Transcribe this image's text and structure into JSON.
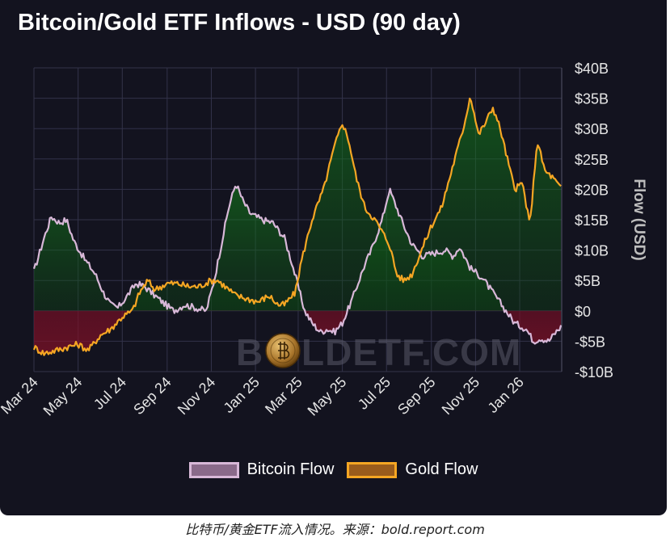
{
  "chart_data": {
    "type": "line",
    "title": "Bitcoin/Gold ETF Inflows - USD (90 day)",
    "ylabel": "Flow (USD)",
    "xlabel": "",
    "ylim": [
      -10,
      40
    ],
    "y_unit": "B USD",
    "yticks": [
      40,
      35,
      30,
      25,
      20,
      15,
      10,
      5,
      0,
      -5,
      -10
    ],
    "ytick_labels": [
      "$40B",
      "$35B",
      "$30B",
      "$25B",
      "$20B",
      "$15B",
      "$10B",
      "$5B",
      "$0",
      "-$5B",
      "-$10B"
    ],
    "xticks": [
      "Mar 24",
      "May 24",
      "Jul 24",
      "Sep 24",
      "Nov 24",
      "Jan 25",
      "Mar 25",
      "May 25",
      "Jul 25",
      "Sep 25",
      "Nov 25",
      "Jan 26"
    ],
    "grid": true,
    "legend_position": "bottom",
    "series": [
      {
        "name": "Bitcoin Flow",
        "color": "#d8b8d8",
        "points": [
          [
            "2024-03-01",
            6.5
          ],
          [
            "2024-03-15",
            12
          ],
          [
            "2024-03-25",
            15.5
          ],
          [
            "2024-04-05",
            14.5
          ],
          [
            "2024-04-15",
            15
          ],
          [
            "2024-04-25",
            11.5
          ],
          [
            "2024-05-10",
            8.5
          ],
          [
            "2024-05-25",
            6
          ],
          [
            "2024-06-05",
            3
          ],
          [
            "2024-06-15",
            1
          ],
          [
            "2024-06-25",
            0.5
          ],
          [
            "2024-07-05",
            2
          ],
          [
            "2024-07-20",
            4.5
          ],
          [
            "2024-08-01",
            4
          ],
          [
            "2024-08-15",
            2.5
          ],
          [
            "2024-08-30",
            1
          ],
          [
            "2024-09-10",
            0
          ],
          [
            "2024-09-25",
            1
          ],
          [
            "2024-10-10",
            0.5
          ],
          [
            "2024-10-25",
            0
          ],
          [
            "2024-11-05",
            5
          ],
          [
            "2024-11-15",
            11
          ],
          [
            "2024-11-25",
            17
          ],
          [
            "2024-12-05",
            21
          ],
          [
            "2024-12-15",
            18
          ],
          [
            "2024-12-25",
            16
          ],
          [
            "2025-01-10",
            15
          ],
          [
            "2025-01-25",
            14.5
          ],
          [
            "2025-02-10",
            12
          ],
          [
            "2025-02-20",
            8
          ],
          [
            "2025-03-01",
            4
          ],
          [
            "2025-03-10",
            0
          ],
          [
            "2025-03-20",
            -2
          ],
          [
            "2025-04-01",
            -3.5
          ],
          [
            "2025-04-10",
            -3
          ],
          [
            "2025-04-20",
            -3.5
          ],
          [
            "2025-05-01",
            -2
          ],
          [
            "2025-05-15",
            2
          ],
          [
            "2025-05-30",
            7
          ],
          [
            "2025-06-10",
            10
          ],
          [
            "2025-06-25",
            15
          ],
          [
            "2025-07-05",
            20
          ],
          [
            "2025-07-15",
            17
          ],
          [
            "2025-07-25",
            14
          ],
          [
            "2025-08-05",
            11
          ],
          [
            "2025-08-20",
            9
          ],
          [
            "2025-09-05",
            9.5
          ],
          [
            "2025-09-20",
            10
          ],
          [
            "2025-10-01",
            9
          ],
          [
            "2025-10-10",
            10.5
          ],
          [
            "2025-10-25",
            7
          ],
          [
            "2025-11-10",
            5.5
          ],
          [
            "2025-11-25",
            3
          ],
          [
            "2025-12-10",
            0.5
          ],
          [
            "2025-12-25",
            -2
          ],
          [
            "2026-01-10",
            -3
          ],
          [
            "2026-01-20",
            -5
          ],
          [
            "2026-01-30",
            -4.5
          ],
          [
            "2026-02-10",
            -5
          ],
          [
            "2026-02-20",
            -3.5
          ],
          [
            "2026-02-28",
            -2.5
          ]
        ]
      },
      {
        "name": "Gold Flow",
        "color": "#f5a623",
        "points": [
          [
            "2024-03-01",
            -6
          ],
          [
            "2024-03-15",
            -7
          ],
          [
            "2024-04-01",
            -6.5
          ],
          [
            "2024-04-15",
            -6
          ],
          [
            "2024-05-01",
            -5.5
          ],
          [
            "2024-05-15",
            -6.5
          ],
          [
            "2024-06-01",
            -4
          ],
          [
            "2024-06-15",
            -3
          ],
          [
            "2024-07-01",
            -1
          ],
          [
            "2024-07-15",
            0
          ],
          [
            "2024-07-25",
            3
          ],
          [
            "2024-08-05",
            5
          ],
          [
            "2024-08-15",
            3.5
          ],
          [
            "2024-09-01",
            4.5
          ],
          [
            "2024-09-15",
            4.5
          ],
          [
            "2024-10-01",
            4
          ],
          [
            "2024-10-15",
            4
          ],
          [
            "2024-11-01",
            5
          ],
          [
            "2024-11-10",
            5
          ],
          [
            "2024-11-20",
            4
          ],
          [
            "2024-12-05",
            2.5
          ],
          [
            "2024-12-20",
            2
          ],
          [
            "2025-01-05",
            1.5
          ],
          [
            "2025-01-20",
            2.5
          ],
          [
            "2025-02-01",
            1
          ],
          [
            "2025-02-10",
            1
          ],
          [
            "2025-02-25",
            3
          ],
          [
            "2025-03-05",
            8
          ],
          [
            "2025-03-20",
            15
          ],
          [
            "2025-04-05",
            20
          ],
          [
            "2025-04-20",
            27
          ],
          [
            "2025-05-01",
            31
          ],
          [
            "2025-05-10",
            28
          ],
          [
            "2025-05-20",
            22
          ],
          [
            "2025-06-01",
            17
          ],
          [
            "2025-06-15",
            15
          ],
          [
            "2025-06-25",
            13
          ],
          [
            "2025-07-05",
            11
          ],
          [
            "2025-07-15",
            6
          ],
          [
            "2025-07-25",
            5
          ],
          [
            "2025-08-05",
            6
          ],
          [
            "2025-08-15",
            9
          ],
          [
            "2025-09-01",
            14
          ],
          [
            "2025-09-15",
            17
          ],
          [
            "2025-10-01",
            24
          ],
          [
            "2025-10-15",
            30
          ],
          [
            "2025-10-25",
            35.5
          ],
          [
            "2025-11-05",
            29
          ],
          [
            "2025-11-15",
            31
          ],
          [
            "2025-11-25",
            33.5
          ],
          [
            "2025-12-05",
            30
          ],
          [
            "2025-12-15",
            25
          ],
          [
            "2025-12-25",
            20
          ],
          [
            "2026-01-05",
            21
          ],
          [
            "2026-01-15",
            14
          ],
          [
            "2026-01-25",
            28
          ],
          [
            "2026-02-05",
            23
          ],
          [
            "2026-02-15",
            22
          ],
          [
            "2026-02-28",
            20
          ]
        ]
      }
    ]
  },
  "caption": "比特币/黄金ETF流入情况。来源：bold.report.com",
  "watermark": {
    "text_left": "B",
    "text_right": "LDETF.COM",
    "coin_icon": "bitcoin-coin-icon"
  },
  "colors": {
    "background": "#13131f",
    "grid": "#33334a",
    "positive_fill": "#0a6b12",
    "negative_fill": "#7a0f24"
  }
}
